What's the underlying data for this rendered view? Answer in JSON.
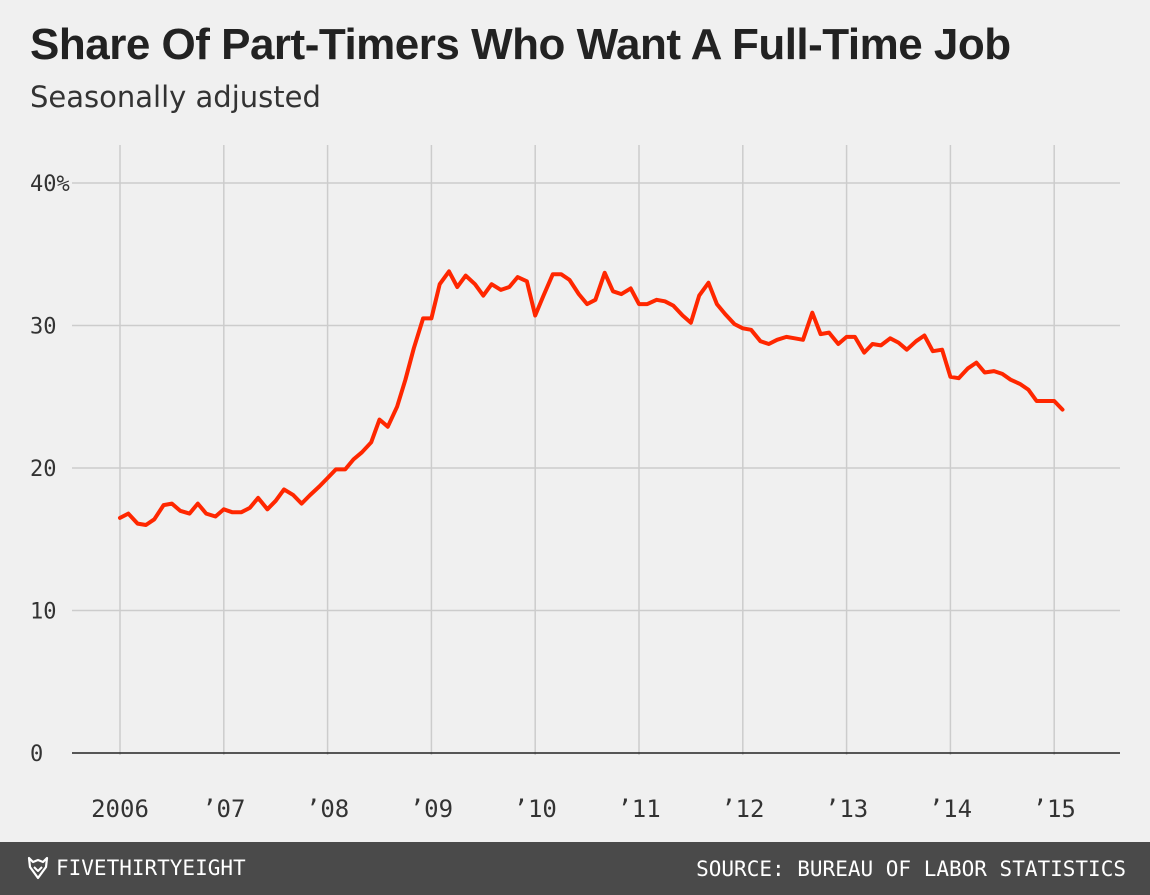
{
  "header": {
    "title": "Share Of Part-Timers Who Want A Full-Time Job",
    "subtitle": "Seasonally adjusted"
  },
  "footer": {
    "brand": "FIVETHIRTYEIGHT",
    "brand_icon": "fox-logo-icon",
    "source": "SOURCE: BUREAU OF LABOR STATISTICS"
  },
  "colors": {
    "line": "#ff2700",
    "grid": "#cccccc",
    "zero_line": "#222222",
    "text": "#333333",
    "background": "#f0f0f0",
    "footer": "#4a4a4a"
  },
  "chart_data": {
    "type": "line",
    "title": "Share Of Part-Timers Who Want A Full-Time Job",
    "subtitle": "Seasonally adjusted",
    "xlabel": "",
    "ylabel": "",
    "ylim": [
      0,
      40
    ],
    "xlim": [
      2006,
      2015.6
    ],
    "grid": true,
    "y_ticks": [
      0,
      10,
      20,
      30,
      40
    ],
    "y_tick_labels": [
      "0",
      "10",
      "20",
      "30",
      "40%"
    ],
    "x_ticks": [
      2006,
      2007,
      2008,
      2009,
      2010,
      2011,
      2012,
      2013,
      2014,
      2015
    ],
    "x_tick_labels": [
      "2006",
      "’07",
      "’08",
      "’09",
      "’10",
      "’11",
      "’12",
      "’13",
      "’14",
      "’15"
    ],
    "series": [
      {
        "x": [
          2006.0,
          2006.08,
          2006.17,
          2006.25,
          2006.33,
          2006.42,
          2006.5,
          2006.58,
          2006.67,
          2006.75,
          2006.83,
          2006.92,
          2007.0,
          2007.08,
          2007.17,
          2007.25,
          2007.33,
          2007.42,
          2007.5,
          2007.58,
          2007.67,
          2007.75,
          2007.83,
          2007.92,
          2008.0,
          2008.08,
          2008.17,
          2008.25,
          2008.33,
          2008.42,
          2008.5,
          2008.58,
          2008.67,
          2008.75,
          2008.83,
          2008.92,
          2009.0,
          2009.08,
          2009.17,
          2009.25,
          2009.33,
          2009.42,
          2009.5,
          2009.58,
          2009.67,
          2009.75,
          2009.83,
          2009.92,
          2010.0,
          2010.08,
          2010.17,
          2010.25,
          2010.33,
          2010.42,
          2010.5,
          2010.58,
          2010.67,
          2010.75,
          2010.83,
          2010.92,
          2011.0,
          2011.08,
          2011.17,
          2011.25,
          2011.33,
          2011.42,
          2011.5,
          2011.58,
          2011.67,
          2011.75,
          2011.83,
          2011.92,
          2012.0,
          2012.08,
          2012.17,
          2012.25,
          2012.33,
          2012.42,
          2012.5,
          2012.58,
          2012.67,
          2012.75,
          2012.83,
          2012.92,
          2013.0,
          2013.08,
          2013.17,
          2013.25,
          2013.33,
          2013.42,
          2013.5,
          2013.58,
          2013.67,
          2013.75,
          2013.83,
          2013.92,
          2014.0,
          2014.08,
          2014.17,
          2014.25,
          2014.33,
          2014.42,
          2014.5,
          2014.58,
          2014.67,
          2014.75,
          2014.83,
          2014.92,
          2015.0,
          2015.08
        ],
        "values": [
          16.5,
          16.8,
          16.1,
          16.0,
          16.4,
          17.4,
          17.5,
          17.0,
          16.8,
          17.5,
          16.8,
          16.6,
          17.1,
          16.9,
          16.9,
          17.2,
          17.9,
          17.1,
          17.7,
          18.5,
          18.1,
          17.5,
          18.1,
          18.7,
          19.3,
          19.9,
          19.9,
          20.6,
          21.1,
          21.8,
          23.4,
          22.9,
          24.3,
          26.2,
          28.4,
          30.5,
          30.5,
          32.9,
          33.8,
          32.7,
          33.5,
          32.9,
          32.1,
          32.9,
          32.5,
          32.7,
          33.4,
          33.1,
          30.7,
          32.1,
          33.6,
          33.6,
          33.2,
          32.2,
          31.5,
          31.8,
          33.7,
          32.4,
          32.2,
          32.6,
          31.5,
          31.5,
          31.8,
          31.7,
          31.4,
          30.7,
          30.2,
          32.1,
          33.0,
          31.5,
          30.8,
          30.1,
          29.8,
          29.7,
          28.9,
          28.7,
          29.0,
          29.2,
          29.1,
          29.0,
          30.9,
          29.4,
          29.5,
          28.7,
          29.2,
          29.2,
          28.1,
          28.7,
          28.6,
          29.1,
          28.8,
          28.3,
          28.9,
          29.3,
          28.2,
          28.3,
          26.4,
          26.3,
          27.0,
          27.4,
          26.7,
          26.8,
          26.6,
          26.2,
          25.9,
          25.5,
          24.7,
          24.7,
          24.7,
          24.1
        ]
      }
    ]
  }
}
